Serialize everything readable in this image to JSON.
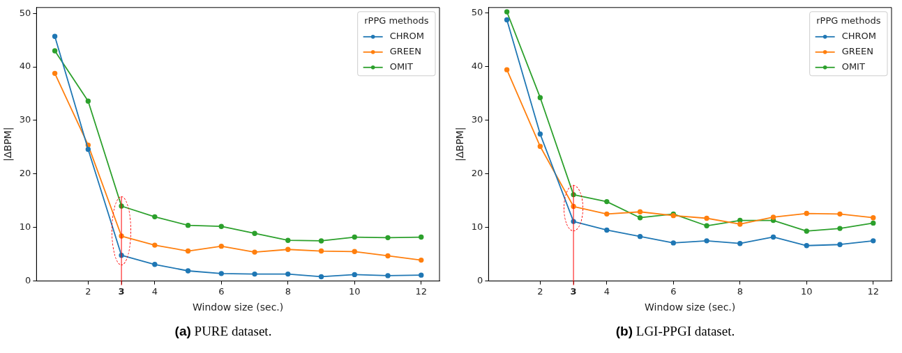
{
  "chart_data": [
    {
      "type": "line",
      "xlabel": "Window size (sec.)",
      "ylabel": "|ΔBPM|",
      "legend_title": "rPPG methods",
      "legend": "top right",
      "marker": "circle",
      "grid": false,
      "x": [
        1,
        2,
        3,
        4,
        5,
        6,
        7,
        8,
        9,
        10,
        11,
        12
      ],
      "xlim": [
        0.45,
        12.55
      ],
      "xticks": [
        2,
        3,
        4,
        6,
        8,
        10,
        12
      ],
      "ylim": [
        0,
        51.1
      ],
      "yticks": [
        0,
        10,
        20,
        30,
        40,
        50
      ],
      "series": [
        {
          "name": "CHROM",
          "color": "#1f77b4",
          "values": [
            45.7,
            24.6,
            4.8,
            3.1,
            1.9,
            1.4,
            1.3,
            1.3,
            0.8,
            1.2,
            1.0,
            1.1
          ]
        },
        {
          "name": "GREEN",
          "color": "#ff7f0e",
          "values": [
            38.8,
            25.4,
            8.4,
            6.7,
            5.6,
            6.5,
            5.4,
            5.9,
            5.6,
            5.5,
            4.7,
            3.9
          ]
        },
        {
          "name": "OMIT",
          "color": "#2ca02c",
          "values": [
            43.0,
            33.6,
            14.0,
            12.0,
            10.4,
            10.2,
            8.9,
            7.6,
            7.5,
            8.2,
            8.1,
            8.2
          ]
        }
      ],
      "ref_lines": [
        {
          "axis": "x",
          "value": 3,
          "color": "#ff0000"
        }
      ],
      "annotations": [
        "(a) PURE dataset."
      ]
    },
    {
      "type": "line",
      "xlabel": "Window size (sec.)",
      "ylabel": "|ΔBPM|",
      "legend_title": "rPPG methods",
      "legend": "top right",
      "marker": "circle",
      "grid": false,
      "x": [
        1,
        2,
        3,
        4,
        5,
        6,
        7,
        8,
        9,
        10,
        11,
        12
      ],
      "xlim": [
        0.45,
        12.55
      ],
      "xticks": [
        2,
        3,
        4,
        6,
        8,
        10,
        12
      ],
      "ylim": [
        0,
        51
      ],
      "yticks": [
        0,
        10,
        20,
        30,
        40,
        50
      ],
      "series": [
        {
          "name": "CHROM",
          "color": "#1f77b4",
          "values": [
            48.7,
            27.4,
            11.1,
            9.5,
            8.3,
            7.1,
            7.5,
            7.0,
            8.2,
            6.6,
            6.8,
            7.5
          ]
        },
        {
          "name": "GREEN",
          "color": "#ff7f0e",
          "values": [
            39.4,
            25.1,
            13.9,
            12.5,
            12.9,
            12.2,
            11.7,
            10.6,
            11.9,
            12.6,
            12.5,
            11.8
          ]
        },
        {
          "name": "OMIT",
          "color": "#2ca02c",
          "values": [
            50.2,
            34.2,
            16.1,
            14.8,
            11.8,
            12.5,
            10.3,
            11.3,
            11.3,
            9.3,
            9.8,
            10.8
          ]
        }
      ],
      "ref_lines": [
        {
          "axis": "x",
          "value": 3,
          "color": "#ff0000"
        }
      ],
      "annotations": [
        "(b) LGI-PPGI dataset."
      ]
    }
  ]
}
